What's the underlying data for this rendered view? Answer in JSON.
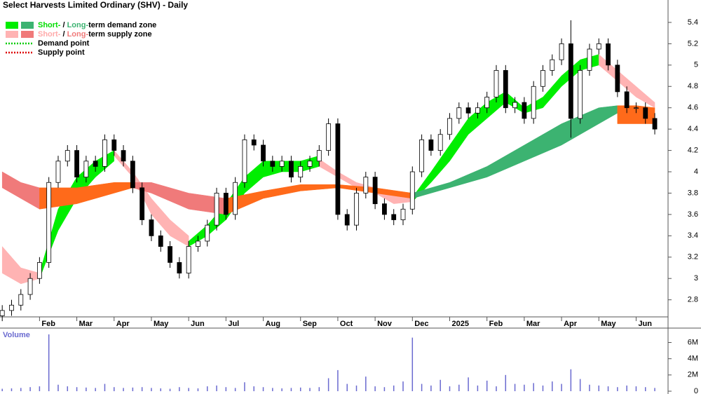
{
  "chart_data": [
    {
      "type": "candlestick",
      "title": "Select Harvests Limited Ordinary (SHV) - Daily",
      "grid": false,
      "xlim": [
        -0.06,
        17.8
      ],
      "ylim": [
        2.64,
        5.61
      ],
      "xticks": [
        {
          "value": 1,
          "label": "Feb"
        },
        {
          "value": 2,
          "label": "Mar"
        },
        {
          "value": 3,
          "label": "Apr"
        },
        {
          "value": 4,
          "label": "May"
        },
        {
          "value": 5,
          "label": "Jun"
        },
        {
          "value": 6,
          "label": "Jul"
        },
        {
          "value": 7,
          "label": "Aug"
        },
        {
          "value": 8,
          "label": "Sep"
        },
        {
          "value": 9,
          "label": "Oct"
        },
        {
          "value": 10,
          "label": "Nov"
        },
        {
          "value": 11,
          "label": "Dec"
        },
        {
          "value": 12,
          "label": "2025"
        },
        {
          "value": 13,
          "label": "Feb"
        },
        {
          "value": 14,
          "label": "Mar"
        },
        {
          "value": 15,
          "label": "Apr"
        },
        {
          "value": 16,
          "label": "May"
        },
        {
          "value": 17,
          "label": "Jun"
        }
      ],
      "yticks": [
        2.8,
        3.0,
        3.2,
        3.4,
        3.6,
        3.8,
        4.0,
        4.2,
        4.4,
        4.6,
        4.8,
        5.0,
        5.2,
        5.4
      ],
      "x": [
        0,
        0.25,
        0.5,
        0.75,
        1,
        1.25,
        1.5,
        1.75,
        2,
        2.25,
        2.5,
        2.75,
        3,
        3.25,
        3.5,
        3.75,
        4,
        4.25,
        4.5,
        4.75,
        5,
        5.25,
        5.5,
        5.75,
        6,
        6.25,
        6.5,
        6.75,
        7,
        7.25,
        7.5,
        7.75,
        8,
        8.25,
        8.5,
        8.75,
        9,
        9.25,
        9.5,
        9.75,
        10,
        10.25,
        10.5,
        10.75,
        11,
        11.25,
        11.5,
        11.75,
        12,
        12.25,
        12.5,
        12.75,
        13,
        13.25,
        13.5,
        13.75,
        14,
        14.25,
        14.5,
        14.75,
        15,
        15.25,
        15.5,
        15.75,
        16,
        16.25,
        16.5,
        16.75,
        17,
        17.25,
        17.5
      ],
      "open": [
        2.65,
        2.7,
        2.75,
        2.85,
        3.0,
        3.15,
        3.9,
        4.1,
        4.2,
        3.95,
        4.1,
        4.05,
        4.3,
        4.2,
        4.1,
        3.85,
        3.55,
        3.4,
        3.3,
        3.15,
        3.05,
        3.3,
        3.35,
        3.5,
        3.8,
        3.6,
        3.9,
        4.3,
        4.25,
        4.1,
        4.05,
        4.1,
        3.95,
        4.05,
        4.1,
        4.2,
        4.45,
        3.6,
        3.5,
        3.8,
        3.95,
        3.7,
        3.6,
        3.55,
        3.65,
        4.0,
        4.3,
        4.2,
        4.35,
        4.5,
        4.6,
        4.55,
        4.6,
        4.7,
        4.95,
        4.6,
        4.65,
        4.5,
        4.8,
        4.95,
        5.05,
        5.2,
        4.5,
        4.95,
        5.15,
        5.2,
        5.0,
        4.75,
        4.6,
        4.6,
        4.5
      ],
      "high": [
        2.75,
        2.8,
        2.9,
        3.05,
        3.2,
        3.95,
        4.15,
        4.25,
        4.25,
        4.15,
        4.15,
        4.35,
        4.35,
        4.25,
        4.15,
        3.9,
        3.6,
        3.45,
        3.35,
        3.2,
        3.35,
        3.4,
        3.55,
        3.85,
        3.85,
        3.95,
        4.35,
        4.35,
        4.3,
        4.15,
        4.15,
        4.15,
        4.1,
        4.15,
        4.25,
        4.5,
        4.5,
        3.65,
        3.85,
        4.0,
        4.0,
        3.75,
        3.65,
        3.7,
        4.05,
        4.35,
        4.35,
        4.4,
        4.55,
        4.65,
        4.65,
        4.65,
        4.75,
        5.0,
        5.0,
        4.7,
        4.7,
        4.85,
        5.0,
        5.1,
        5.25,
        5.42,
        5.0,
        5.2,
        5.25,
        5.25,
        5.05,
        4.8,
        4.65,
        4.65,
        4.55
      ],
      "low": [
        2.6,
        2.65,
        2.7,
        2.8,
        2.95,
        3.1,
        3.85,
        4.05,
        3.9,
        3.9,
        4.0,
        4.0,
        4.15,
        4.05,
        3.8,
        3.5,
        3.35,
        3.25,
        3.1,
        3.0,
        3.0,
        3.25,
        3.3,
        3.45,
        3.55,
        3.55,
        3.85,
        4.2,
        4.05,
        4.0,
        4.0,
        3.9,
        3.9,
        4.0,
        4.05,
        4.15,
        3.55,
        3.45,
        3.45,
        3.75,
        3.65,
        3.55,
        3.5,
        3.5,
        3.6,
        3.95,
        4.15,
        4.15,
        4.3,
        4.45,
        4.5,
        4.5,
        4.55,
        4.65,
        4.55,
        4.55,
        4.45,
        4.45,
        4.75,
        4.9,
        5.0,
        4.32,
        4.45,
        4.9,
        5.1,
        4.95,
        4.7,
        4.55,
        4.55,
        4.45,
        4.35
      ],
      "close": [
        2.7,
        2.75,
        2.85,
        3.0,
        3.15,
        3.9,
        4.1,
        4.2,
        3.95,
        4.1,
        4.05,
        4.3,
        4.2,
        4.1,
        3.85,
        3.55,
        3.4,
        3.3,
        3.15,
        3.05,
        3.3,
        3.35,
        3.5,
        3.8,
        3.6,
        3.9,
        4.3,
        4.25,
        4.1,
        4.05,
        4.1,
        3.95,
        4.05,
        4.1,
        4.2,
        4.45,
        3.6,
        3.5,
        3.8,
        3.95,
        3.7,
        3.6,
        3.55,
        3.65,
        4.0,
        4.3,
        4.2,
        4.35,
        4.5,
        4.6,
        4.55,
        4.6,
        4.7,
        4.95,
        4.6,
        4.65,
        4.5,
        4.8,
        4.95,
        5.05,
        5.2,
        4.5,
        4.95,
        5.15,
        5.2,
        5.0,
        4.75,
        4.6,
        4.6,
        4.5,
        4.4
      ],
      "bands": [
        {
          "color": "#ffb3b3",
          "x": [
            0,
            0.5,
            1.0
          ],
          "lower": [
            3.05,
            2.95,
            3.0
          ],
          "upper": [
            3.3,
            3.1,
            3.05
          ]
        },
        {
          "color": "#00ee00",
          "x": [
            1.0,
            1.5,
            2.0,
            2.5,
            3.0
          ],
          "lower": [
            3.0,
            3.45,
            3.75,
            3.95,
            4.1
          ],
          "upper": [
            3.05,
            3.65,
            3.95,
            4.1,
            4.2
          ]
        },
        {
          "color": "#ffb3b3",
          "x": [
            3.0,
            3.5,
            4.0,
            4.5,
            5.0
          ],
          "lower": [
            4.15,
            3.95,
            3.6,
            3.4,
            3.3
          ],
          "upper": [
            4.2,
            4.0,
            3.75,
            3.55,
            3.4
          ]
        },
        {
          "color": "#00ee00",
          "x": [
            5.0,
            5.5,
            6.0,
            6.5,
            7.0,
            7.5,
            8.0,
            8.5
          ],
          "lower": [
            3.3,
            3.4,
            3.55,
            3.8,
            3.95,
            4.0,
            4.0,
            4.05
          ],
          "upper": [
            3.35,
            3.5,
            3.7,
            3.95,
            4.1,
            4.1,
            4.1,
            4.15
          ]
        },
        {
          "color": "#ffb3b3",
          "x": [
            8.5,
            9.0,
            9.5,
            10.0,
            10.5,
            11.0
          ],
          "lower": [
            4.05,
            3.95,
            3.85,
            3.8,
            3.7,
            3.72
          ],
          "upper": [
            4.12,
            4.0,
            3.9,
            3.85,
            3.8,
            3.75
          ]
        },
        {
          "color": "#00ee00",
          "x": [
            11.0,
            11.5,
            12.0,
            12.5,
            13.0,
            13.5,
            14.0,
            14.5,
            15.0,
            15.5,
            16.0
          ],
          "lower": [
            3.72,
            3.9,
            4.1,
            4.35,
            4.5,
            4.65,
            4.55,
            4.6,
            4.8,
            4.95,
            5.0
          ],
          "upper": [
            3.76,
            4.0,
            4.25,
            4.5,
            4.65,
            4.75,
            4.6,
            4.7,
            4.9,
            5.05,
            5.1
          ]
        },
        {
          "color": "#ffb3b3",
          "x": [
            16.0,
            16.5,
            17.0,
            17.5
          ],
          "lower": [
            5.0,
            4.85,
            4.7,
            4.6
          ],
          "upper": [
            5.1,
            4.95,
            4.8,
            4.65
          ]
        },
        {
          "color": "#f07a7a",
          "x": [
            0,
            0.5,
            1.0
          ],
          "lower": [
            3.85,
            3.75,
            3.65
          ],
          "upper": [
            4.0,
            3.9,
            3.85
          ]
        },
        {
          "color": "#ff6a1a",
          "x": [
            1.0,
            2.0,
            3.0,
            3.5
          ],
          "lower": [
            3.65,
            3.7,
            3.8,
            3.85
          ],
          "upper": [
            3.85,
            3.85,
            3.9,
            3.9
          ]
        },
        {
          "color": "#f07a7a",
          "x": [
            3.5,
            4.0,
            5.0,
            6.0
          ],
          "lower": [
            3.85,
            3.8,
            3.65,
            3.6
          ],
          "upper": [
            3.9,
            3.9,
            3.8,
            3.75
          ]
        },
        {
          "color": "#ff6a1a",
          "x": [
            6.0,
            7.0,
            8.0,
            9.0,
            10.0,
            11.0
          ],
          "lower": [
            3.6,
            3.75,
            3.82,
            3.85,
            3.8,
            3.75
          ],
          "upper": [
            3.75,
            3.82,
            3.88,
            3.88,
            3.85,
            3.8
          ]
        },
        {
          "color": "#3cb371",
          "x": [
            11.0,
            12.0,
            13.0,
            14.0,
            15.0,
            16.0,
            16.5
          ],
          "lower": [
            3.75,
            3.85,
            3.95,
            4.1,
            4.25,
            4.45,
            4.55
          ],
          "upper": [
            3.8,
            3.9,
            4.05,
            4.25,
            4.45,
            4.6,
            4.62
          ]
        },
        {
          "color": "#ff6a1a",
          "x": [
            16.5,
            17.0,
            17.5
          ],
          "lower": [
            4.45,
            4.45,
            4.45
          ],
          "upper": [
            4.62,
            4.62,
            4.6
          ]
        }
      ],
      "legend": [
        {
          "swatches": [
            "#00ee00",
            "#3cb371"
          ],
          "parts": [
            {
              "text": "Short-",
              "color": "#00dd00"
            },
            {
              "text": " / ",
              "color": "#000000"
            },
            {
              "text": "Long-",
              "color": "#3cb371"
            },
            {
              "text": "term demand zone",
              "color": "#000000"
            }
          ]
        },
        {
          "swatches": [
            "#ffb3b3",
            "#f07a7a"
          ],
          "parts": [
            {
              "text": "Short-",
              "color": "#ffaaaa"
            },
            {
              "text": " / ",
              "color": "#000000"
            },
            {
              "text": "Long-",
              "color": "#f07a7a"
            },
            {
              "text": "term supply zone",
              "color": "#000000"
            }
          ]
        },
        {
          "dotted": "#00cc00",
          "parts": [
            {
              "text": "Demand point",
              "color": "#000000"
            }
          ]
        },
        {
          "dotted": "#dd0000",
          "parts": [
            {
              "text": "Supply point",
              "color": "#000000"
            }
          ]
        }
      ]
    },
    {
      "type": "bar",
      "title": "Volume",
      "color": "#6a6ad0",
      "ylim": [
        0,
        7600000
      ],
      "yticks": [
        0,
        {
          "value": 2000000,
          "label": "2M"
        },
        {
          "value": 4000000,
          "label": "4M"
        },
        {
          "value": 6000000,
          "label": "6M"
        }
      ],
      "x": [
        0,
        0.25,
        0.5,
        0.75,
        1,
        1.25,
        1.5,
        1.75,
        2,
        2.25,
        2.5,
        2.75,
        3,
        3.25,
        3.5,
        3.75,
        4,
        4.25,
        4.5,
        4.75,
        5,
        5.25,
        5.5,
        5.75,
        6,
        6.25,
        6.5,
        6.75,
        7,
        7.25,
        7.5,
        7.75,
        8,
        8.25,
        8.5,
        8.75,
        9,
        9.25,
        9.5,
        9.75,
        10,
        10.25,
        10.5,
        10.75,
        11,
        11.25,
        11.5,
        11.75,
        12,
        12.25,
        12.5,
        12.75,
        13,
        13.25,
        13.5,
        13.75,
        14,
        14.25,
        14.5,
        14.75,
        15,
        15.25,
        15.5,
        15.75,
        16,
        16.25,
        16.5,
        16.75,
        17,
        17.25,
        17.5
      ],
      "values": [
        300000,
        350000,
        400000,
        500000,
        600000,
        7000000,
        800000,
        600000,
        500000,
        450000,
        400000,
        900000,
        500000,
        400000,
        450000,
        500000,
        400000,
        350000,
        300000,
        500000,
        400000,
        350000,
        600000,
        700000,
        500000,
        400000,
        1100000,
        600000,
        500000,
        400000,
        350000,
        400000,
        450000,
        400000,
        500000,
        1600000,
        2600000,
        900000,
        700000,
        1800000,
        600000,
        500000,
        700000,
        1200000,
        6600000,
        900000,
        700000,
        1400000,
        600000,
        800000,
        1700000,
        700000,
        1300000,
        600000,
        2000000,
        900000,
        800000,
        1000000,
        700000,
        1200000,
        900000,
        2700000,
        1500000,
        800000,
        700000,
        600000,
        500000,
        700000,
        600000,
        500000,
        400000
      ]
    }
  ]
}
